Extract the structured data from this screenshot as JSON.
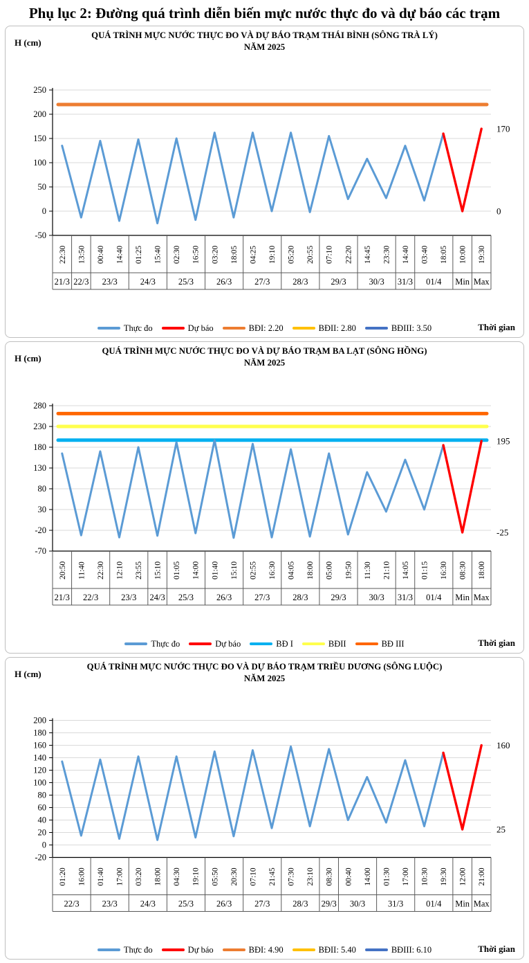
{
  "page_title": "Phụ lục 2: Đường quá trình diễn biến mực nước thực đo và dự báo các trạm",
  "chart_data": [
    {
      "type": "line",
      "title": "QUÁ TRÌNH MỰC NƯỚC THỰC ĐO VÀ DỰ BÁO TRẠM THÁI BÌNH (SÔNG TRÀ LÝ)",
      "subtitle": "NĂM 2025",
      "y_axis_label": "H (cm)",
      "x_axis_label": "Thời gian",
      "y_ticks": [
        250,
        200,
        150,
        100,
        50,
        0,
        -50
      ],
      "ylim": [
        -50,
        250
      ],
      "times": [
        "22:30",
        "13:50",
        "00:40",
        "14:40",
        "01:25",
        "15:40",
        "02:30",
        "16:50",
        "03:20",
        "18:05",
        "04:25",
        "19:10",
        "05:20",
        "20:55",
        "07:10",
        "22:20",
        "14:45",
        "23:30",
        "14:40",
        "03:40",
        "18:05",
        "10:00",
        "19:30"
      ],
      "date_groups": [
        {
          "label": "21/3",
          "count": 1
        },
        {
          "label": "22/3",
          "count": 1
        },
        {
          "label": "23/3",
          "count": 2
        },
        {
          "label": "24/3",
          "count": 2
        },
        {
          "label": "25/3",
          "count": 2
        },
        {
          "label": "26/3",
          "count": 2
        },
        {
          "label": "27/3",
          "count": 2
        },
        {
          "label": "28/3",
          "count": 2
        },
        {
          "label": "29/3",
          "count": 2
        },
        {
          "label": "30/3",
          "count": 2
        },
        {
          "label": "31/3",
          "count": 1
        },
        {
          "label": "01/4",
          "count": 2
        },
        {
          "label": "Min",
          "count": 1
        },
        {
          "label": "Max",
          "count": 1
        }
      ],
      "observed_name": "Thực đo",
      "observed_color": "#5B9BD5",
      "observed_values": [
        135,
        -13,
        145,
        -20,
        148,
        -25,
        150,
        -18,
        162,
        -13,
        162,
        0,
        162,
        -2,
        155,
        25,
        108,
        27,
        135,
        22,
        160
      ],
      "forecast_name": "Dự báo",
      "forecast_color": "#FF0000",
      "forecast_values": [
        160,
        0,
        170
      ],
      "thresholds": [
        {
          "label": "BĐI: 2.20",
          "value": 220,
          "color": "#ED7D31"
        }
      ],
      "annotations": [
        {
          "label": "170",
          "value": 170
        },
        {
          "label": "0",
          "value": 0
        }
      ],
      "legend": [
        {
          "label": "Thực đo",
          "color": "#5B9BD5"
        },
        {
          "label": "Dự báo",
          "color": "#FF0000"
        },
        {
          "label": "BĐI: 2.20",
          "color": "#ED7D31"
        },
        {
          "label": "BĐII: 2.80",
          "color": "#FFC000"
        },
        {
          "label": "BĐIII: 3.50",
          "color": "#4472C4"
        }
      ]
    },
    {
      "type": "line",
      "title": "QUÁ TRÌNH MỰC NƯỚC THỰC ĐO VÀ DỰ BÁO TRẠM BA LẠT (SÔNG HỒNG)",
      "subtitle": "NĂM 2025",
      "y_axis_label": "H (cm)",
      "x_axis_label": "Thời gian",
      "y_ticks": [
        280,
        230,
        180,
        130,
        80,
        30,
        -20,
        -70
      ],
      "ylim": [
        -70,
        280
      ],
      "times": [
        "20:50",
        "11:40",
        "22:30",
        "12:10",
        "23:55",
        "15:10",
        "01:05",
        "14:00",
        "01:40",
        "15:10",
        "02:55",
        "16:30",
        "04:05",
        "18:00",
        "05:00",
        "19:50",
        "11:30",
        "21:10",
        "14:05",
        "01:15",
        "16:30",
        "08:30",
        "18:00"
      ],
      "date_groups": [
        {
          "label": "21/3",
          "count": 1
        },
        {
          "label": "22/3",
          "count": 2
        },
        {
          "label": "23/3",
          "count": 2
        },
        {
          "label": "24/3",
          "count": 1
        },
        {
          "label": "25/3",
          "count": 2
        },
        {
          "label": "26/3",
          "count": 2
        },
        {
          "label": "27/3",
          "count": 2
        },
        {
          "label": "28/3",
          "count": 2
        },
        {
          "label": "29/3",
          "count": 2
        },
        {
          "label": "30/3",
          "count": 2
        },
        {
          "label": "31/3",
          "count": 1
        },
        {
          "label": "01/4",
          "count": 2
        },
        {
          "label": "Min",
          "count": 1
        },
        {
          "label": "Max",
          "count": 1
        }
      ],
      "observed_name": "Thực đo",
      "observed_color": "#5B9BD5",
      "observed_values": [
        165,
        -32,
        170,
        -37,
        180,
        -33,
        192,
        -27,
        197,
        -38,
        188,
        -37,
        175,
        -35,
        165,
        -30,
        120,
        25,
        150,
        30,
        185
      ],
      "forecast_name": "Dự báo",
      "forecast_color": "#FF0000",
      "forecast_values": [
        185,
        -25,
        195
      ],
      "thresholds": [
        {
          "label": "BĐ III",
          "value": 261,
          "color": "#FF6600"
        },
        {
          "label": "BĐII",
          "value": 230,
          "color": "#FFFF4D"
        },
        {
          "label": "BĐ I",
          "value": 197,
          "color": "#00B0F0"
        }
      ],
      "annotations": [
        {
          "label": "195",
          "value": 195
        },
        {
          "label": "-25",
          "value": -25
        }
      ],
      "legend": [
        {
          "label": "Thực đo",
          "color": "#5B9BD5"
        },
        {
          "label": "Dự báo",
          "color": "#FF0000"
        },
        {
          "label": "BĐ I",
          "color": "#00B0F0"
        },
        {
          "label": "BĐII",
          "color": "#FFFF4D"
        },
        {
          "label": "BĐ III",
          "color": "#FF6600"
        }
      ]
    },
    {
      "type": "line",
      "title": "QUÁ TRÌNH MỰC NƯỚC THỰC ĐO VÀ DỰ BÁO TRẠM TRIỀU DƯƠNG  (SÔNG LUỘC)",
      "subtitle": "NĂM 2025",
      "y_axis_label": "H (cm)",
      "x_axis_label": "Thời gian",
      "y_ticks": [
        200,
        180,
        160,
        140,
        120,
        100,
        80,
        60,
        40,
        20,
        0,
        -20
      ],
      "ylim": [
        -20,
        200
      ],
      "times": [
        "01:20",
        "16:00",
        "01:40",
        "17:00",
        "03:20",
        "18:00",
        "04:30",
        "19:10",
        "05:50",
        "20:30",
        "07:10",
        "21:45",
        "07:30",
        "23:10",
        "08:30",
        "00:40",
        "14:00",
        "01:30",
        "17:00",
        "10:30",
        "19:30",
        "12:00",
        "21:00"
      ],
      "date_groups": [
        {
          "label": "22/3",
          "count": 2
        },
        {
          "label": "23/3",
          "count": 2
        },
        {
          "label": "24/3",
          "count": 2
        },
        {
          "label": "25/3",
          "count": 2
        },
        {
          "label": "26/3",
          "count": 2
        },
        {
          "label": "27/3",
          "count": 2
        },
        {
          "label": "28/3",
          "count": 2
        },
        {
          "label": "29/3",
          "count": 1
        },
        {
          "label": "30/3",
          "count": 2
        },
        {
          "label": "31/3",
          "count": 2
        },
        {
          "label": "01/4",
          "count": 2
        },
        {
          "label": "Min",
          "count": 1
        },
        {
          "label": "Max",
          "count": 1
        }
      ],
      "observed_name": "Thực đo",
      "observed_color": "#5B9BD5",
      "observed_values": [
        134,
        15,
        137,
        10,
        142,
        8,
        142,
        12,
        150,
        14,
        152,
        27,
        158,
        30,
        154,
        40,
        109,
        36,
        136,
        30,
        148
      ],
      "forecast_name": "Dự báo",
      "forecast_color": "#FF0000",
      "forecast_values": [
        148,
        25,
        160
      ],
      "thresholds": [],
      "annotations": [
        {
          "label": "160",
          "value": 160
        },
        {
          "label": "25",
          "value": 25
        }
      ],
      "legend": [
        {
          "label": "Thực đo",
          "color": "#5B9BD5"
        },
        {
          "label": "Dự báo",
          "color": "#FF0000"
        },
        {
          "label": "BĐI: 4.90",
          "color": "#ED7D31"
        },
        {
          "label": "BĐII: 5.40",
          "color": "#FFC000"
        },
        {
          "label": "BĐIII: 6.10",
          "color": "#4472C4"
        }
      ]
    }
  ]
}
